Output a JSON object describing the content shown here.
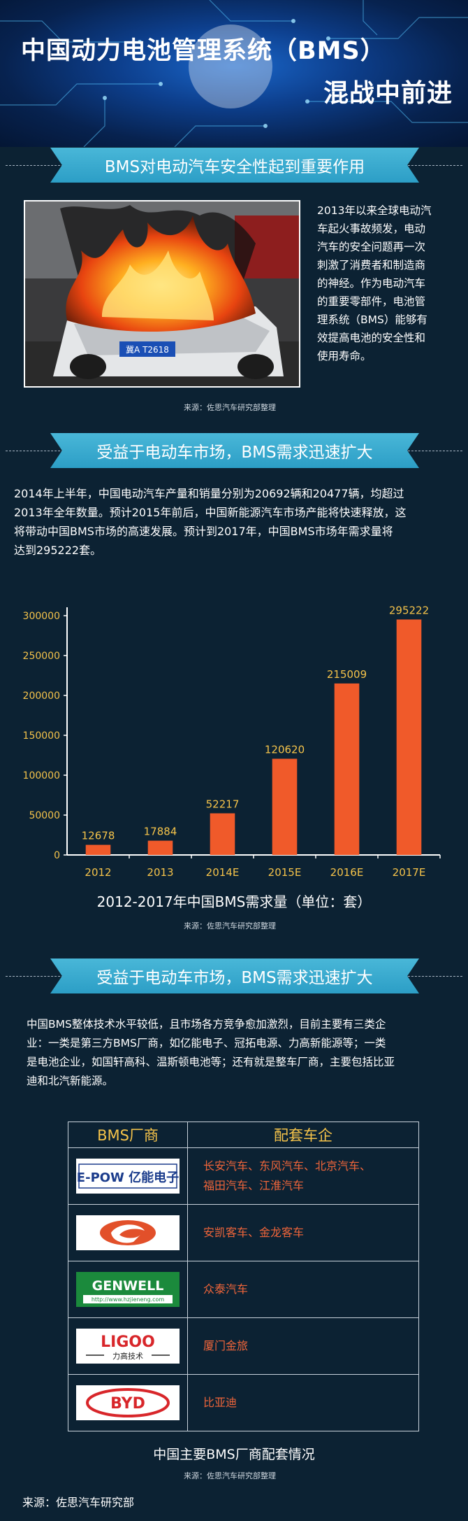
{
  "header": {
    "title_line1": "中国动力电池管理系统（BMS）",
    "title_line2": "混战中前进"
  },
  "section1": {
    "banner": "BMS对电动汽车安全性起到重要作用",
    "plate": "冀A T2618",
    "text_lines": [
      "2013年以来全球电动汽",
      "车起火事故频发，电动",
      "汽车的安全问题再一次",
      "刺激了消费者和制造商",
      "的神经。作为电动汽车",
      "的重要零部件，电池管",
      "理系统（BMS）能够有",
      "效提高电池的安全性和",
      "使用寿命。"
    ],
    "source": "来源：佐思汽车研究部整理"
  },
  "section2": {
    "banner": "受益于电动车市场，BMS需求迅速扩大",
    "para_lines": [
      "2014年上半年，中国电动汽车产量和销量分别为20692辆和20477辆，均超过",
      "2013年全年数量。预计2015年前后，中国新能源汽车市场产能将快速释放，这",
      "将带动中国BMS市场的高速发展。预计到2017年，中国BMS市场年需求量将",
      "达到295222套。"
    ],
    "chart_title": "2012-2017年中国BMS需求量（单位：套）",
    "source": "来源：佐思汽车研究部整理"
  },
  "chart_data": {
    "type": "bar",
    "categories": [
      "2012",
      "2013",
      "2014E",
      "2015E",
      "2016E",
      "2017E"
    ],
    "values": [
      12678,
      17884,
      52217,
      120620,
      215009,
      295222
    ],
    "value_labels": [
      "12678",
      "17884",
      "52217",
      "120620",
      "215009",
      "295222"
    ],
    "yticks": [
      "0",
      "50000",
      "100000",
      "150000",
      "200000",
      "250000",
      "300000"
    ],
    "ylim": [
      0,
      300000
    ],
    "bar_color": "#f05a2a",
    "label_color": "#f5c34a"
  },
  "section3": {
    "banner": "受益于电动车市场，BMS需求迅速扩大",
    "para_lines": [
      "中国BMS整体技术水平较低，且市场各方竞争愈加激烈，目前主要有三类企",
      "业：一类是第三方BMS厂商，如亿能电子、冠拓电源、力高新能源等；一类",
      "是电池企业，如国轩高科、温斯顿电池等；还有就是整车厂商，主要包括比亚",
      "迪和北汽新能源。"
    ],
    "table_header": [
      "BMS厂商",
      "配套车企"
    ],
    "rows": [
      {
        "logo": "E-POW 亿能电子",
        "cars": [
          "长安汽车、东风汽车、北京汽车、",
          "福田汽车、江淮汽车"
        ]
      },
      {
        "logo": "",
        "cars": [
          "安凯客车、金龙客车"
        ]
      },
      {
        "logo": "GENWELL",
        "logo_sub": "http://www.hzjieneng.com",
        "cars": [
          "众泰汽车"
        ]
      },
      {
        "logo": "LIGOO",
        "logo_sub": "力高技术",
        "cars": [
          "厦门金旅"
        ]
      },
      {
        "logo": "BYD",
        "cars": [
          "比亚迪"
        ]
      }
    ],
    "table_title": "中国主要BMS厂商配套情况",
    "source": "来源：佐思汽车研究部整理"
  },
  "footer": "来源：佐思汽车研究部"
}
